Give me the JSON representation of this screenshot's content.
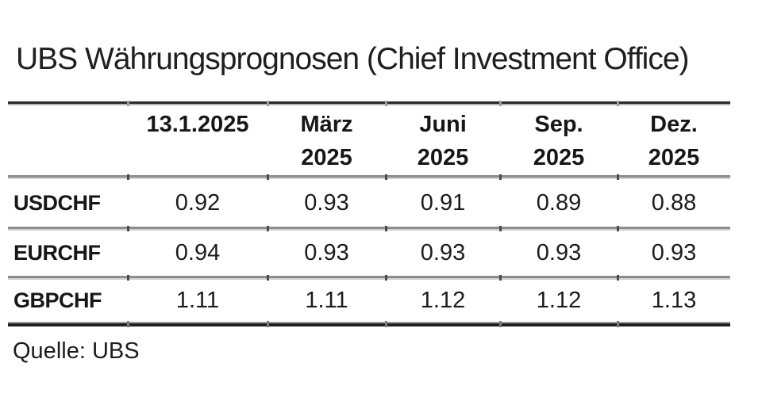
{
  "title": "UBS Währungsprognosen (Chief Investment Office)",
  "source": "Quelle: UBS",
  "colors": {
    "ink": "#1c1c1c",
    "rule_dark": "#2a2a2a",
    "rule_gray": "#8d8d8d",
    "background": "#ffffff"
  },
  "table": {
    "columns": [
      {
        "line1": "13.1.2025",
        "line2": ""
      },
      {
        "line1": "März",
        "line2": "2025"
      },
      {
        "line1": "Juni",
        "line2": "2025"
      },
      {
        "line1": "Sep.",
        "line2": "2025"
      },
      {
        "line1": "Dez.",
        "line2": "2025"
      }
    ],
    "rows": [
      {
        "label": "USDCHF",
        "values": [
          "0.92",
          "0.93",
          "0.91",
          "0.89",
          "0.88"
        ]
      },
      {
        "label": "EURCHF",
        "values": [
          "0.94",
          "0.93",
          "0.93",
          "0.93",
          "0.93"
        ]
      },
      {
        "label": "GBPCHF",
        "values": [
          "1.11",
          "1.11",
          "1.12",
          "1.12",
          "1.13"
        ]
      }
    ]
  },
  "chart_data": {
    "type": "table",
    "title": "UBS Währungsprognosen (Chief Investment Office)",
    "columns": [
      "",
      "13.1.2025",
      "März 2025",
      "Juni 2025",
      "Sep. 2025",
      "Dez. 2025"
    ],
    "rows": [
      [
        "USDCHF",
        0.92,
        0.93,
        0.91,
        0.89,
        0.88
      ],
      [
        "EURCHF",
        0.94,
        0.93,
        0.93,
        0.93,
        0.93
      ],
      [
        "GBPCHF",
        1.11,
        1.11,
        1.12,
        1.12,
        1.13
      ]
    ],
    "source": "Quelle: UBS"
  }
}
